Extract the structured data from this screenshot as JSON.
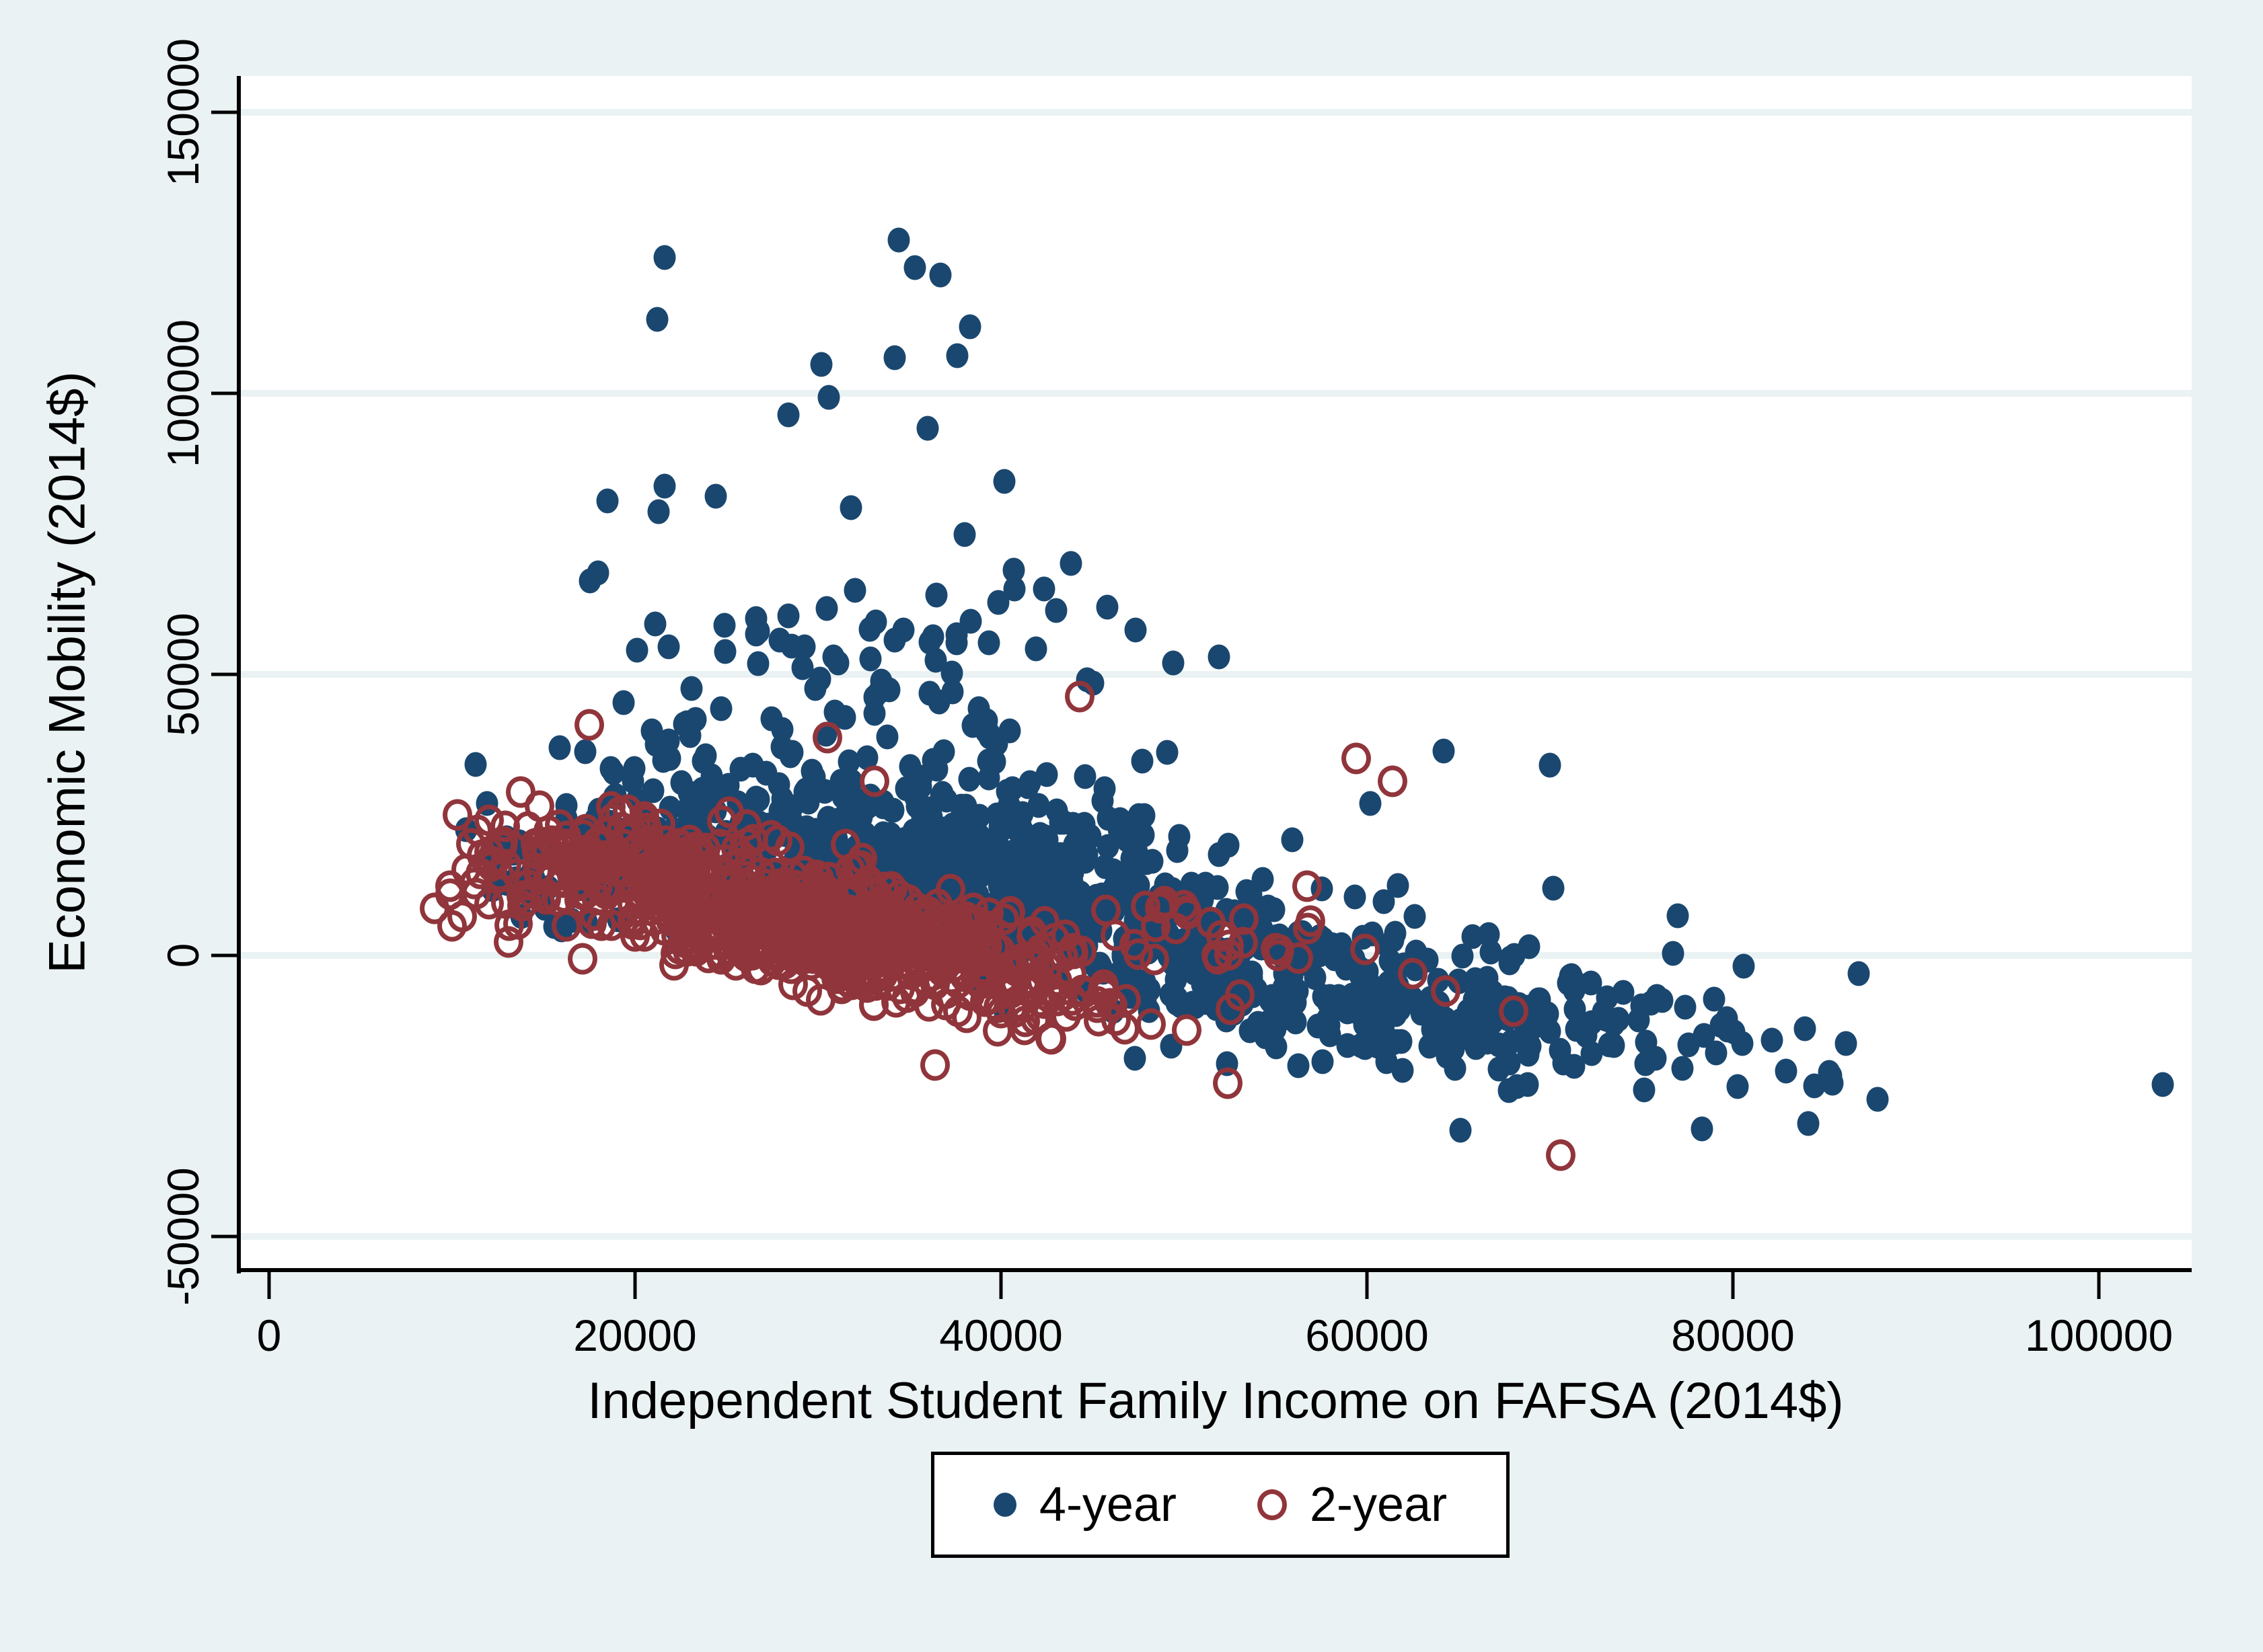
{
  "chart_data": {
    "type": "scatter",
    "title": "",
    "xlabel": "Independent Student Family Income on FAFSA (2014$)",
    "ylabel": "Economic Mobility (2014$)",
    "xlim": [
      -1580,
      105070
    ],
    "ylim": [
      -55860,
      156460
    ],
    "x_ticks": [
      0,
      20000,
      40000,
      60000,
      80000,
      100000
    ],
    "x_tick_labels": [
      "0",
      "20000",
      "40000",
      "60000",
      "80000",
      "100000"
    ],
    "y_ticks": [
      150000,
      100000,
      50000,
      0,
      -50000
    ],
    "y_tick_labels": [
      "150000",
      "100000",
      "50000",
      "0",
      "-50000"
    ],
    "grid": true,
    "legend_position": "bottom-center",
    "colors": {
      "background": "#eaf2f3",
      "plot_background": "#ffffff",
      "gridline": "#eaf2f3",
      "axis": "#000000",
      "navy": "#1a476f",
      "maroon": "#90353b"
    },
    "seed": 42,
    "series": [
      {
        "name": "4-year",
        "marker": "filled-circle",
        "color": "#1a476f",
        "clusters": [
          {
            "n": 380,
            "cx": 34000,
            "cy": 21000,
            "sx": 9500,
            "sy": 6500,
            "slope": -0.28,
            "xmin": 12000,
            "xmax": 62000,
            "ymin": 8000,
            "ymax": 42000
          },
          {
            "n": 330,
            "cx": 42000,
            "cy": 7000,
            "sx": 10000,
            "sy": 5500,
            "slope": -0.38,
            "xmin": 18000,
            "xmax": 70000,
            "ymin": -12000,
            "ymax": 20000
          },
          {
            "n": 280,
            "cx": 60000,
            "cy": -8000,
            "sx": 11000,
            "sy": 6000,
            "slope": -0.35,
            "xmin": 40000,
            "xmax": 92000,
            "ymin": -31000,
            "ymax": 6000
          },
          {
            "n": 90,
            "cx": 34000,
            "cy": 45000,
            "sx": 8000,
            "sy": 16000,
            "slope": 0,
            "xmin": 17000,
            "xmax": 52000,
            "ymin": 28000,
            "ymax": 100000
          },
          {
            "n": 45,
            "cx": 15500,
            "cy": 16000,
            "sx": 2600,
            "sy": 6000,
            "slope": -0.5,
            "xmin": 9500,
            "xmax": 21000,
            "ymin": 2000,
            "ymax": 30000
          }
        ],
        "outliers": [
          [
            21600,
            124200
          ],
          [
            34400,
            127300
          ],
          [
            35300,
            122400
          ],
          [
            36700,
            121100
          ],
          [
            21200,
            113100
          ],
          [
            38300,
            111900
          ],
          [
            34200,
            106400
          ],
          [
            37600,
            106700
          ],
          [
            30200,
            105200
          ],
          [
            30600,
            99300
          ],
          [
            28400,
            96200
          ],
          [
            36000,
            93800
          ],
          [
            40200,
            84300
          ],
          [
            21600,
            83500
          ],
          [
            24400,
            81700
          ],
          [
            18500,
            80900
          ],
          [
            45800,
            62000
          ],
          [
            21100,
            59000
          ],
          [
            24900,
            58700
          ],
          [
            26600,
            59900
          ],
          [
            41900,
            54500
          ],
          [
            31100,
            52000
          ],
          [
            37300,
            50200
          ],
          [
            44700,
            49000
          ],
          [
            15900,
            37000
          ],
          [
            23000,
            39100
          ],
          [
            24700,
            43900
          ],
          [
            64200,
            36400
          ],
          [
            70000,
            33800
          ],
          [
            60200,
            27000
          ],
          [
            77000,
            7000
          ],
          [
            103500,
            -23000
          ],
          [
            11300,
            34000
          ],
          [
            11900,
            27000
          ],
          [
            70200,
            12000
          ],
          [
            65100,
            -31100
          ],
          [
            78300,
            -30900
          ],
          [
            84100,
            -29900
          ]
        ]
      },
      {
        "name": "2-year",
        "marker": "hollow-circle",
        "color": "#90353b",
        "clusters": [
          {
            "n": 620,
            "cx": 29500,
            "cy": 4500,
            "sx": 6800,
            "sy": 4300,
            "slope": -0.42,
            "xmin": 13500,
            "xmax": 48000,
            "ymin": -14000,
            "ymax": 18000
          },
          {
            "n": 150,
            "cx": 21000,
            "cy": 17500,
            "sx": 4800,
            "sy": 3600,
            "slope": -0.35,
            "xmin": 11000,
            "xmax": 34000,
            "ymin": 9000,
            "ymax": 31000
          },
          {
            "n": 60,
            "cx": 42000,
            "cy": -8000,
            "sx": 5500,
            "sy": 3500,
            "slope": -0.35,
            "xmin": 32000,
            "xmax": 56000,
            "ymin": -18000,
            "ymax": 0
          },
          {
            "n": 25,
            "cx": 13000,
            "cy": 12000,
            "sx": 2200,
            "sy": 5500,
            "slope": 0,
            "xmin": 9000,
            "xmax": 17500,
            "ymin": 0,
            "ymax": 26000
          },
          {
            "n": 30,
            "cx": 51000,
            "cy": 3000,
            "sx": 4500,
            "sy": 4500,
            "slope": -0.45,
            "xmin": 44000,
            "xmax": 62000,
            "ymin": -12000,
            "ymax": 14000
          }
        ],
        "outliers": [
          [
            17500,
            41000
          ],
          [
            44300,
            46000
          ],
          [
            59400,
            35000
          ],
          [
            61400,
            31000
          ],
          [
            30500,
            38800
          ],
          [
            33100,
            31000
          ],
          [
            70600,
            -35500
          ],
          [
            52400,
            -22700
          ],
          [
            64300,
            -6300
          ],
          [
            68000,
            -9900
          ],
          [
            62500,
            -3200
          ],
          [
            36400,
            -19500
          ],
          [
            9900,
            12300
          ],
          [
            9900,
            10900
          ],
          [
            10300,
            25000
          ],
          [
            11400,
            22200
          ]
        ]
      }
    ]
  },
  "legend": {
    "items": [
      {
        "label": "4-year",
        "marker": "filled-circle",
        "color": "#1a476f"
      },
      {
        "label": "2-year",
        "marker": "hollow-circle",
        "color": "#90353b"
      }
    ]
  },
  "axes": {
    "x_title": "Independent Student Family Income on FAFSA (2014$)",
    "y_title": "Economic Mobility (2014$)"
  }
}
